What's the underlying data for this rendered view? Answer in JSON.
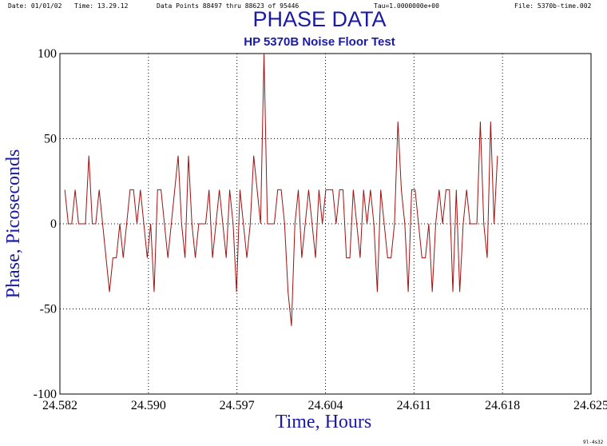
{
  "header": {
    "date": "Date: 01/01/02",
    "time": "Time: 13.29.12",
    "points": "Data Points 88497 thru 88623 of 95446",
    "tau": "Tau=1.0000000e+00",
    "file": "File: 5370b-time.002"
  },
  "footer": "9l-4s32",
  "chart_data": {
    "type": "line",
    "title": "PHASE DATA",
    "subtitle": "HP 5370B Noise Floor Test",
    "xlabel": "Time, Hours",
    "ylabel": "Phase, Picoseconds",
    "xlim": [
      24.582,
      24.625
    ],
    "ylim": [
      -100,
      100
    ],
    "x_ticks": [
      "24.582",
      "24.590",
      "24.597",
      "24.604",
      "24.611",
      "24.618",
      "24.625"
    ],
    "y_ticks": [
      "100",
      "50",
      "0",
      "-50",
      "-100"
    ],
    "grid": true,
    "line_color": "#a01010",
    "x_start": 24.5824,
    "x_step": 0.000278,
    "series": [
      {
        "values": [
          20,
          0,
          0,
          20,
          0,
          0,
          0,
          40,
          0,
          0,
          20,
          0,
          -20,
          -40,
          -20,
          -20,
          0,
          -20,
          0,
          20,
          20,
          0,
          20,
          0,
          -20,
          0,
          -40,
          20,
          20,
          0,
          -20,
          0,
          20,
          40,
          0,
          -20,
          40,
          0,
          -20,
          0,
          0,
          0,
          20,
          -20,
          0,
          20,
          0,
          -20,
          20,
          0,
          -40,
          20,
          0,
          -20,
          0,
          40,
          20,
          0,
          100,
          0,
          0,
          0,
          20,
          20,
          0,
          -40,
          -60,
          0,
          20,
          -20,
          0,
          20,
          0,
          -20,
          20,
          0,
          20,
          20,
          20,
          0,
          20,
          20,
          -20,
          -20,
          20,
          0,
          -20,
          20,
          0,
          20,
          0,
          -40,
          20,
          0,
          -20,
          -20,
          0,
          60,
          20,
          0,
          -40,
          20,
          20,
          0,
          -20,
          -20,
          0,
          -40,
          0,
          20,
          0,
          20,
          20,
          -40,
          20,
          -40,
          0,
          20,
          0,
          0,
          0,
          60,
          0,
          -20,
          60,
          0,
          40
        ]
      }
    ]
  }
}
